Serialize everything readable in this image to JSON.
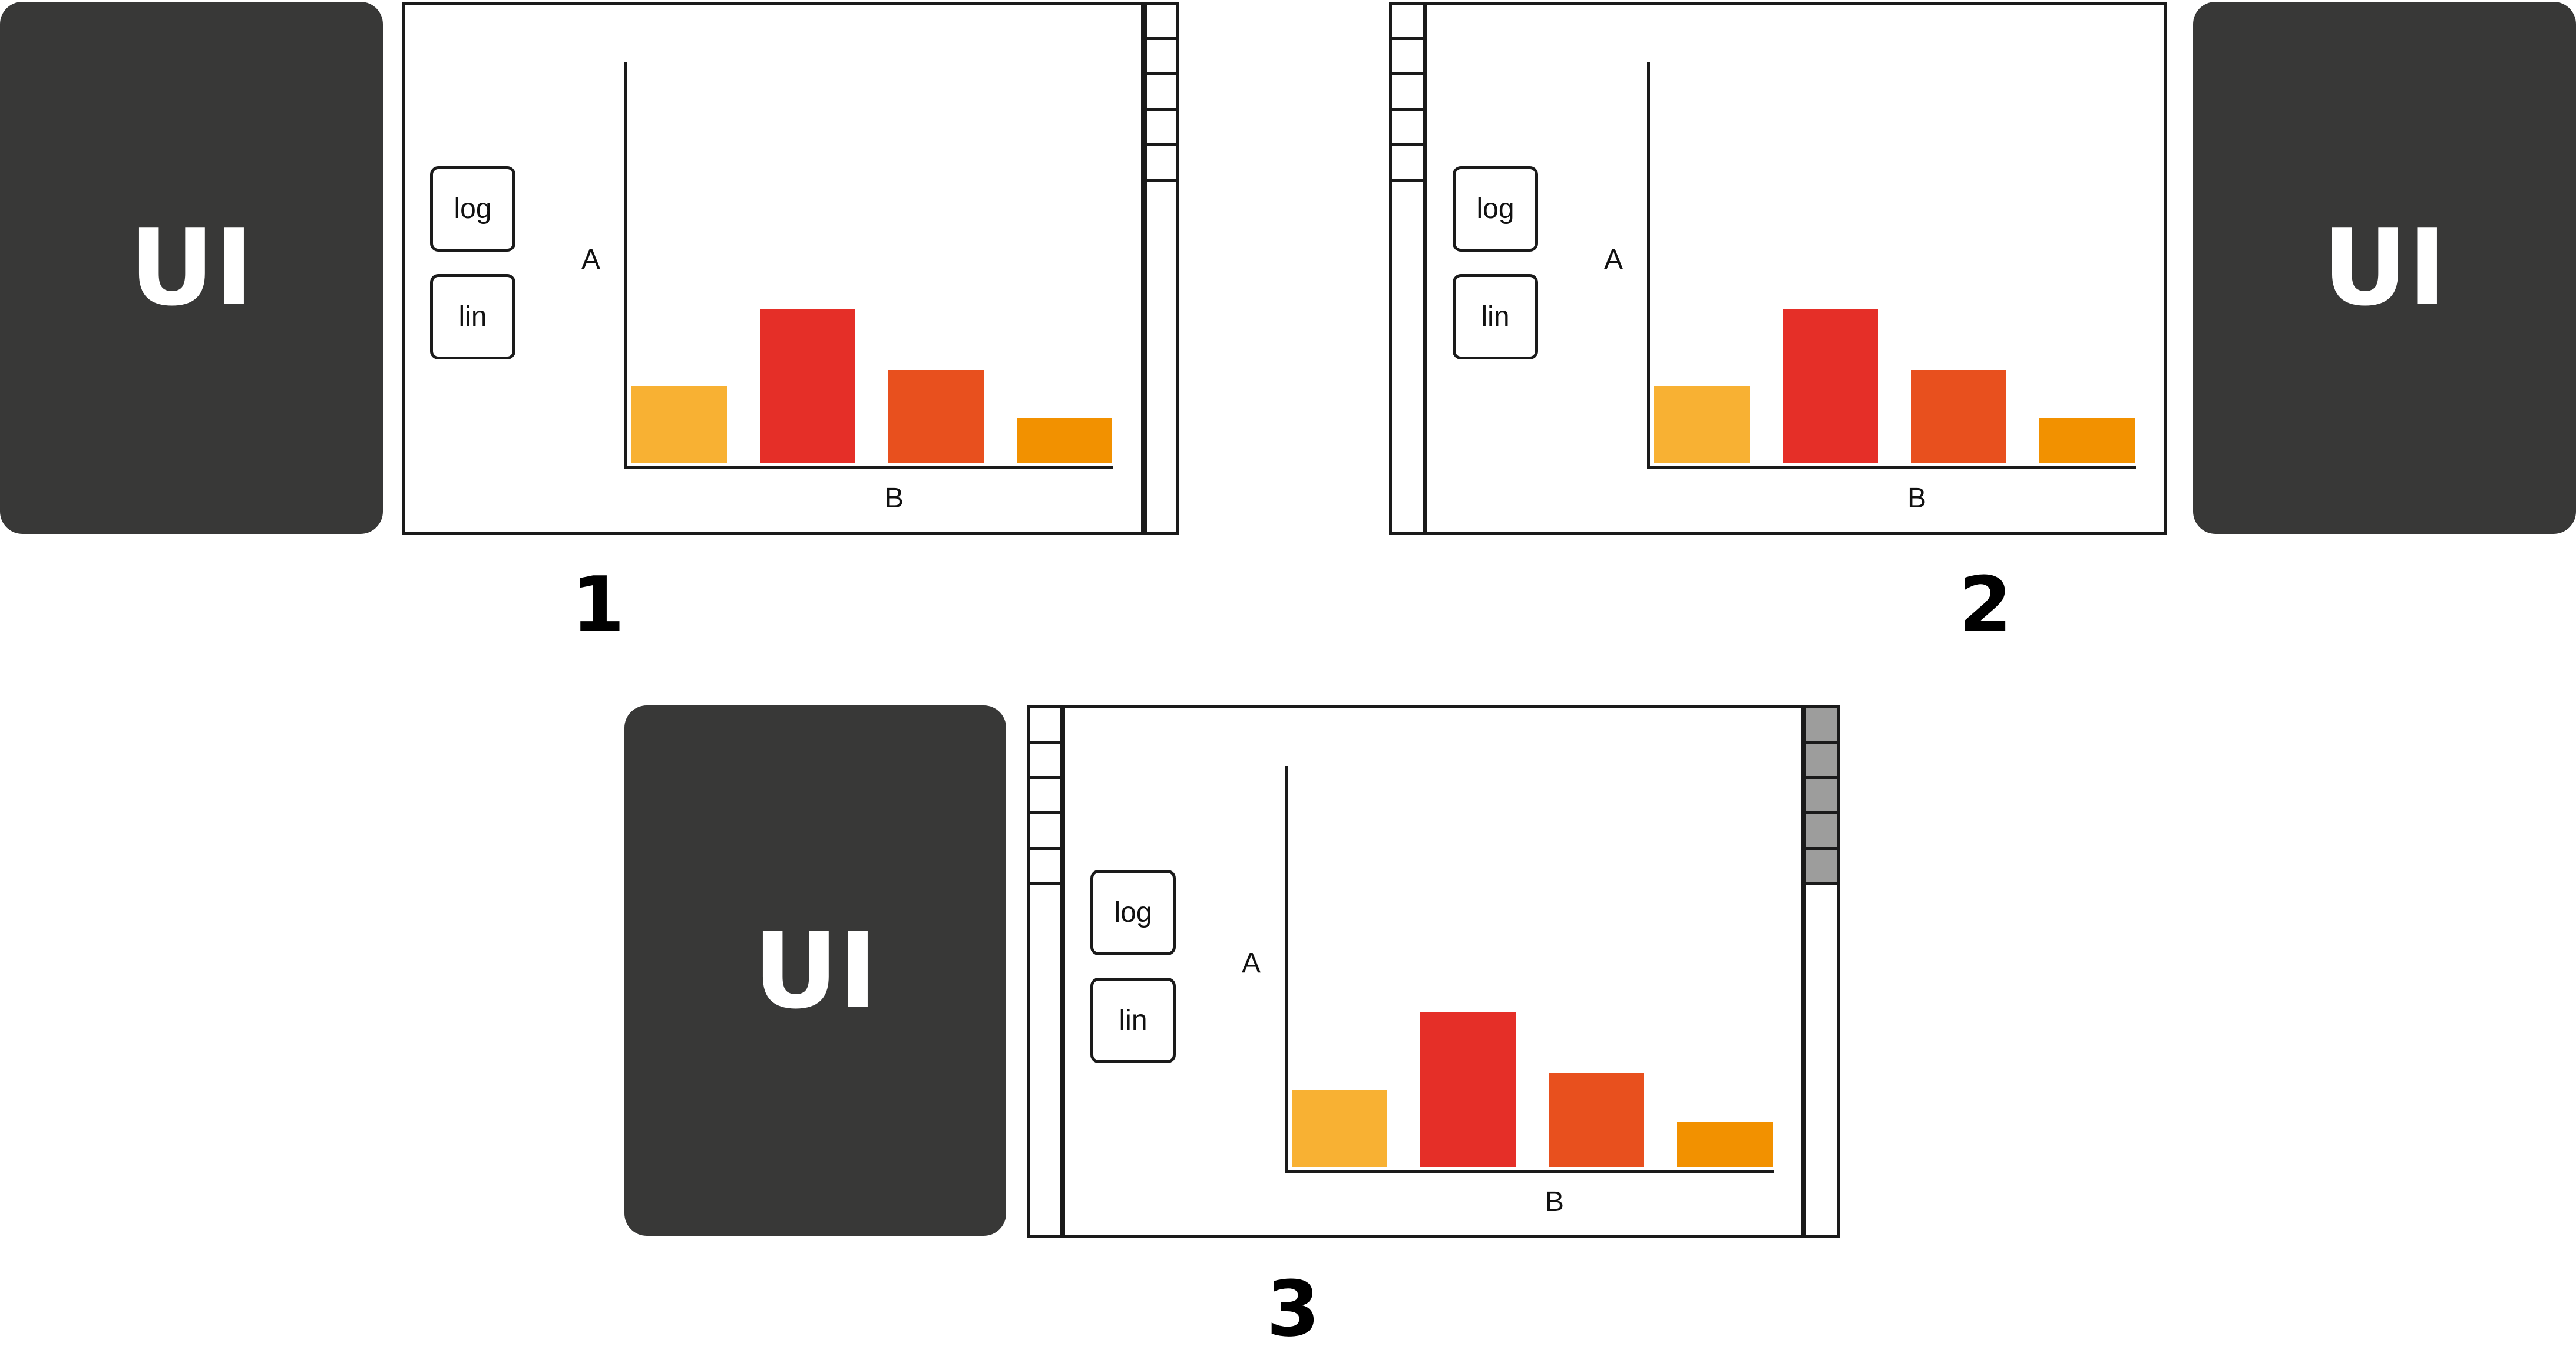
{
  "block_label": "UI",
  "buttons": {
    "log": "log",
    "lin": "lin"
  },
  "axes": {
    "y": "A",
    "x": "B"
  },
  "captions": {
    "one": "1",
    "two": "2",
    "three": "3"
  },
  "bar_colors": [
    "#f8b133",
    "#e52f28",
    "#e8501e",
    "#f29100"
  ],
  "strip_highlight_color": "#9d9d9c",
  "chart_data": [
    {
      "type": "bar",
      "xlabel": "B",
      "ylabel": "A",
      "categories": [
        "",
        "",
        "",
        ""
      ],
      "values": [
        0.19,
        0.38,
        0.23,
        0.11
      ]
    },
    {
      "type": "bar",
      "xlabel": "B",
      "ylabel": "A",
      "categories": [
        "",
        "",
        "",
        ""
      ],
      "values": [
        0.19,
        0.38,
        0.23,
        0.11
      ]
    },
    {
      "type": "bar",
      "xlabel": "B",
      "ylabel": "A",
      "categories": [
        "",
        "",
        "",
        ""
      ],
      "values": [
        0.19,
        0.38,
        0.23,
        0.11
      ]
    }
  ]
}
